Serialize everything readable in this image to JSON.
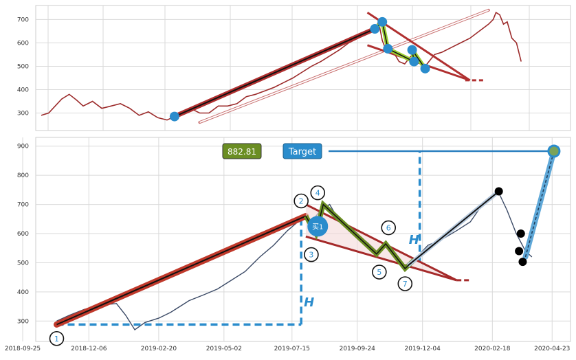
{
  "chart_data": [
    {
      "type": "line",
      "panel": "top",
      "ylim": [
        225,
        760
      ],
      "yticks": [
        300,
        400,
        500,
        600,
        700
      ],
      "grid": true,
      "colors": {
        "price": "#9c2b2b",
        "pivot": "#2a8ccc",
        "trend": "#b03030",
        "band": "#9acd32"
      },
      "price_series": [
        [
          0,
          290
        ],
        [
          8,
          300
        ],
        [
          15,
          330
        ],
        [
          22,
          360
        ],
        [
          30,
          380
        ],
        [
          38,
          355
        ],
        [
          45,
          330
        ],
        [
          55,
          350
        ],
        [
          65,
          320
        ],
        [
          75,
          330
        ],
        [
          85,
          340
        ],
        [
          95,
          320
        ],
        [
          105,
          290
        ],
        [
          115,
          305
        ],
        [
          125,
          280
        ],
        [
          135,
          270
        ],
        [
          143,
          285
        ],
        [
          150,
          300
        ],
        [
          160,
          320
        ],
        [
          170,
          300
        ],
        [
          180,
          300
        ],
        [
          190,
          330
        ],
        [
          200,
          330
        ],
        [
          210,
          340
        ],
        [
          220,
          370
        ],
        [
          230,
          380
        ],
        [
          240,
          395
        ],
        [
          250,
          410
        ],
        [
          260,
          430
        ],
        [
          270,
          450
        ],
        [
          280,
          475
        ],
        [
          290,
          500
        ],
        [
          300,
          520
        ],
        [
          310,
          545
        ],
        [
          320,
          570
        ],
        [
          330,
          600
        ],
        [
          340,
          620
        ],
        [
          350,
          640
        ],
        [
          358,
          660
        ],
        [
          362,
          690
        ],
        [
          366,
          610
        ],
        [
          370,
          570
        ],
        [
          374,
          580
        ],
        [
          378,
          560
        ],
        [
          384,
          520
        ],
        [
          390,
          510
        ],
        [
          396,
          540
        ],
        [
          402,
          560
        ],
        [
          408,
          510
        ],
        [
          412,
          500
        ],
        [
          418,
          530
        ],
        [
          422,
          550
        ],
        [
          430,
          560
        ],
        [
          440,
          580
        ],
        [
          450,
          600
        ],
        [
          460,
          620
        ],
        [
          470,
          650
        ],
        [
          480,
          680
        ],
        [
          485,
          700
        ],
        [
          488,
          730
        ],
        [
          492,
          720
        ],
        [
          496,
          680
        ],
        [
          500,
          690
        ],
        [
          505,
          620
        ],
        [
          510,
          600
        ],
        [
          515,
          520
        ]
      ],
      "pivots": [
        [
          143,
          285
        ],
        [
          358,
          660
        ],
        [
          366,
          690
        ],
        [
          372,
          575
        ],
        [
          400,
          520
        ],
        [
          398,
          570
        ],
        [
          412,
          490
        ]
      ],
      "trend_lines": [
        {
          "from": [
            143,
            285
          ],
          "to": [
            358,
            660
          ]
        },
        {
          "from": [
            350,
            730
          ],
          "to": [
            460,
            440
          ]
        },
        {
          "from": [
            350,
            590
          ],
          "to": [
            460,
            440
          ]
        }
      ],
      "projection_arrow": {
        "from": [
          170,
          260
        ],
        "to": [
          480,
          740
        ]
      }
    },
    {
      "type": "line",
      "panel": "bottom",
      "xlim": [
        "2018-09-25",
        "2020-05-13"
      ],
      "xticks": [
        "2018-09-25",
        "2018-12-06",
        "2019-02-20",
        "2019-05-02",
        "2019-07-15",
        "2019-09-24",
        "2019-12-04",
        "2020-02-18",
        "2020-04-23"
      ],
      "ylim": [
        230,
        930
      ],
      "yticks": [
        300,
        400,
        500,
        600,
        700,
        800,
        900
      ],
      "grid": true,
      "colors": {
        "price": "#3b4a66",
        "trend": "#c0392b",
        "band": "#6b8e23",
        "pivot": "#2a8ccc",
        "target": "#2a7fbf",
        "measure": "#2a8ccc"
      },
      "price_series": [
        [
          "2018-11-01",
          300
        ],
        [
          "2018-11-15",
          320
        ],
        [
          "2018-12-01",
          340
        ],
        [
          "2018-12-20",
          355
        ],
        [
          "2019-01-05",
          360
        ],
        [
          "2019-01-15",
          320
        ],
        [
          "2019-01-25",
          270
        ],
        [
          "2019-02-05",
          295
        ],
        [
          "2019-02-20",
          310
        ],
        [
          "2019-03-05",
          330
        ],
        [
          "2019-03-15",
          350
        ],
        [
          "2019-03-25",
          370
        ],
        [
          "2019-04-10",
          390
        ],
        [
          "2019-04-25",
          410
        ],
        [
          "2019-05-10",
          440
        ],
        [
          "2019-05-25",
          470
        ],
        [
          "2019-06-10",
          520
        ],
        [
          "2019-06-25",
          560
        ],
        [
          "2019-07-10",
          610
        ],
        [
          "2019-07-25",
          650
        ],
        [
          "2019-07-30",
          660
        ],
        [
          "2019-08-05",
          640
        ],
        [
          "2019-08-15",
          680
        ],
        [
          "2019-08-25",
          700
        ],
        [
          "2019-09-05",
          640
        ],
        [
          "2019-09-20",
          600
        ],
        [
          "2019-10-05",
          570
        ],
        [
          "2019-10-15",
          540
        ],
        [
          "2019-10-25",
          560
        ],
        [
          "2019-11-05",
          530
        ],
        [
          "2019-11-15",
          490
        ],
        [
          "2019-11-25",
          510
        ],
        [
          "2019-12-10",
          560
        ],
        [
          "2019-12-25",
          580
        ],
        [
          "2020-01-10",
          610
        ],
        [
          "2020-01-25",
          640
        ],
        [
          "2020-02-05",
          690
        ],
        [
          "2020-02-15",
          720
        ],
        [
          "2020-02-25",
          740
        ],
        [
          "2020-03-05",
          680
        ],
        [
          "2020-03-15",
          600
        ],
        [
          "2020-03-25",
          540
        ],
        [
          "2020-04-01",
          520
        ]
      ],
      "trend_line": {
        "from": [
          "2018-11-01",
          288
        ],
        "to": [
          "2019-07-30",
          660
        ]
      },
      "triangle": {
        "upper_from": [
          "2019-07-30",
          700
        ],
        "upper_to": [
          "2020-01-10",
          440
        ],
        "lower_from": [
          "2019-07-30",
          590
        ],
        "lower_to": [
          "2020-01-10",
          440
        ],
        "dash_to": [
          "2020-01-25",
          440
        ]
      },
      "zigzag": [
        [
          "2019-07-30",
          660
        ],
        [
          "2019-08-10",
          600
        ],
        [
          "2019-08-18",
          700
        ],
        [
          "2019-10-15",
          530
        ],
        [
          "2019-10-25",
          565
        ],
        [
          "2019-11-15",
          480
        ],
        [
          "2019-11-25",
          510
        ]
      ],
      "pivot_labels": [
        {
          "label": "1",
          "at": [
            "2018-11-01",
            240
          ]
        },
        {
          "label": "2",
          "at": [
            "2019-07-25",
            712
          ]
        },
        {
          "label": "3",
          "at": [
            "2019-08-05",
            528
          ]
        },
        {
          "label": "4",
          "at": [
            "2019-08-12",
            740
          ]
        },
        {
          "label": "5",
          "at": [
            "2019-10-18",
            468
          ]
        },
        {
          "label": "6",
          "at": [
            "2019-10-28",
            620
          ]
        },
        {
          "label": "7",
          "at": [
            "2019-11-15",
            428
          ]
        }
      ],
      "buy_marker": {
        "label": "买1",
        "at": [
          "2019-08-12",
          625
        ]
      },
      "rally_line": {
        "from": [
          "2019-11-18",
          490
        ],
        "to": [
          "2020-02-25",
          745
        ]
      },
      "black_pivots": [
        [
          "2020-02-25",
          745
        ],
        [
          "2020-03-20",
          600
        ],
        [
          "2020-03-18",
          540
        ],
        [
          "2020-03-22",
          503
        ]
      ],
      "target_line": {
        "from": [
          "2020-03-25",
          520
        ],
        "to": [
          "2020-04-25",
          883
        ]
      },
      "target": {
        "label": "Target",
        "value_label": "882.81",
        "value": 882.81,
        "at": [
          "2020-04-25",
          883
        ]
      },
      "measure": {
        "label": "H",
        "h_level": 288,
        "h_from": [
          "2018-11-01",
          288
        ],
        "h_to": [
          "2019-07-25",
          288
        ],
        "v_x": "2019-07-25",
        "v_top": 660
      },
      "measure2": {
        "label": "H",
        "v_x": "2019-12-01",
        "v_bottom": 500,
        "v_top": 883
      }
    }
  ]
}
